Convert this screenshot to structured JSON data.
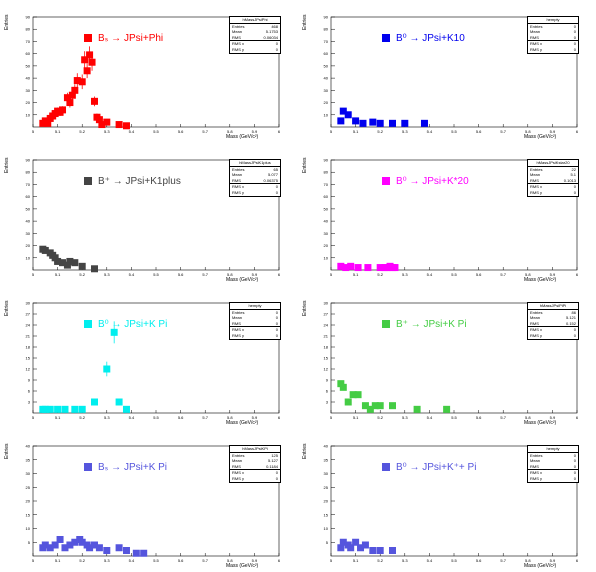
{
  "axis_common": {
    "ylabel": "Entries",
    "xlabel": "Mass (GeV/c²)"
  },
  "chart_data": [
    {
      "type": "scatter",
      "legend": "Bₛ → JPsi+Phi",
      "color": "#ff0000",
      "stats": {
        "title": "hMassJPsiPhi",
        "entries": "468",
        "mean": "5.1753",
        "rms": "0.06034",
        "row4": "RMS x",
        "row4v": "0",
        "row5": "RMS y",
        "row5v": "0"
      },
      "x": [
        4.99,
        5.0,
        5.01,
        5.02,
        5.03,
        5.04,
        5.05,
        5.06,
        5.07,
        5.09,
        5.1,
        5.11,
        5.12,
        5.13,
        5.15,
        5.16,
        5.17,
        5.18,
        5.19,
        5.2,
        5.21,
        5.22,
        5.23,
        5.25,
        5.3,
        5.33
      ],
      "y": [
        3,
        5,
        3,
        7,
        9,
        11,
        13,
        12,
        14,
        24,
        20,
        26,
        30,
        38,
        37,
        55,
        46,
        59,
        53,
        21,
        8,
        6,
        2,
        4,
        2,
        1
      ],
      "err": [
        0,
        2,
        0,
        3,
        3,
        3,
        3,
        3,
        3,
        4,
        4,
        5,
        5,
        6,
        6,
        7,
        6,
        7,
        7,
        4,
        3,
        2,
        1,
        2,
        1,
        1
      ],
      "ylim": [
        0,
        90
      ],
      "yticks": [
        "90",
        "80",
        "70",
        "60",
        "50",
        "40",
        "30",
        "20",
        "10"
      ],
      "xlim": [
        4.95,
        5.45
      ]
    },
    {
      "type": "scatter",
      "legend": "B⁰ → JPsi+K10",
      "color": "#0000ee",
      "stats": {
        "title": "hempty",
        "entries": "0",
        "mean": "0",
        "rms": "0",
        "row4": "RMS x",
        "row4v": "0",
        "row5": "RMS y",
        "row5v": "0"
      },
      "x": [
        4.99,
        5.0,
        5.02,
        5.05,
        5.08,
        5.12,
        5.15,
        5.2,
        5.25,
        5.33
      ],
      "y": [
        5,
        13,
        10,
        5,
        3,
        4,
        3,
        3,
        3,
        3
      ],
      "err": [
        0,
        0,
        0,
        0,
        0,
        0,
        0,
        0,
        0,
        0
      ],
      "ylim": [
        0,
        90
      ],
      "yticks": [
        "90",
        "80",
        "70",
        "60",
        "50",
        "40",
        "30",
        "20",
        "10"
      ],
      "xlim": [
        4.95,
        5.45
      ]
    },
    {
      "type": "scatter",
      "legend": "B⁺ → JPsi+K1plus",
      "color": "#444444",
      "stats": {
        "title": "hMassJPsiK1plus",
        "entries": "65",
        "mean": "5.077",
        "rms": "0.06375",
        "row4": "RMS x",
        "row4v": "0",
        "row5": "RMS y",
        "row5v": "0"
      },
      "x": [
        4.99,
        5.0,
        5.02,
        5.03,
        5.04,
        5.05,
        5.07,
        5.09,
        5.1,
        5.12,
        5.15,
        5.2
      ],
      "y": [
        17,
        16,
        14,
        12,
        10,
        7,
        6,
        4,
        7,
        6,
        3,
        1
      ],
      "err": [
        0,
        0,
        0,
        0,
        0,
        0,
        0,
        0,
        0,
        0,
        0,
        0
      ],
      "ylim": [
        0,
        90
      ],
      "yticks": [
        "90",
        "80",
        "70",
        "60",
        "50",
        "40",
        "30",
        "20",
        "10"
      ],
      "xlim": [
        4.95,
        5.45
      ]
    },
    {
      "type": "scatter",
      "legend": "B⁰ → JPsi+K*20",
      "color": "#ff00ff",
      "stats": {
        "title": "hMassJPsiKstar20",
        "entries": "22",
        "mean": "5.1",
        "rms": "0.1013",
        "row4": "RMS x",
        "row4v": "0",
        "row5": "RMS y",
        "row5v": "0"
      },
      "x": [
        4.99,
        5.01,
        5.03,
        5.06,
        5.1,
        5.15,
        5.17,
        5.18,
        5.19,
        5.2,
        5.21
      ],
      "y": [
        3,
        2,
        3,
        2,
        2,
        2,
        2,
        2,
        3,
        2,
        2
      ],
      "err": [
        0,
        0,
        0,
        0,
        0,
        0,
        0,
        0,
        0,
        0,
        0
      ],
      "ylim": [
        0,
        90
      ],
      "yticks": [
        "90",
        "80",
        "70",
        "60",
        "50",
        "40",
        "30",
        "20",
        "10"
      ],
      "xlim": [
        4.95,
        5.45
      ]
    },
    {
      "type": "scatter",
      "legend": "B⁰ → JPsi+K Pi",
      "color": "#00eeee",
      "stats": {
        "title": "hempty",
        "entries": "0",
        "mean": "0",
        "rms": "0",
        "row4": "RMS x",
        "row4v": "0",
        "row5": "RMS y",
        "row5v": "0"
      },
      "x": [
        4.99,
        5.0,
        5.02,
        5.05,
        5.08,
        5.12,
        5.15,
        5.2,
        5.25,
        5.28,
        5.3,
        5.33
      ],
      "y": [
        1,
        1,
        1,
        1,
        1,
        1,
        1,
        3,
        12,
        22,
        3,
        1
      ],
      "err": [
        0,
        0,
        0,
        0,
        0,
        0,
        0,
        0,
        2,
        3,
        0,
        0
      ],
      "ylim": [
        0,
        30
      ],
      "yticks": [
        "30",
        "27",
        "24",
        "21",
        "18",
        "15",
        "12",
        "9",
        "6",
        "3"
      ],
      "xlim": [
        4.95,
        5.45
      ]
    },
    {
      "type": "scatter",
      "legend": "B⁺ → JPsi+K Pi",
      "color": "#44cc44",
      "stats": {
        "title": "hMassJPsiPiPi",
        "entries": "86",
        "mean": "5.121",
        "rms": "0.152",
        "row4": "RMS x",
        "row4v": "0",
        "row5": "RMS y",
        "row5v": "0"
      },
      "x": [
        4.99,
        5.0,
        5.02,
        5.04,
        5.06,
        5.09,
        5.11,
        5.13,
        5.15,
        5.2,
        5.3,
        5.42
      ],
      "y": [
        8,
        7,
        3,
        5,
        5,
        2,
        1,
        2,
        2,
        2,
        1,
        1
      ],
      "err": [
        0,
        0,
        0,
        0,
        0,
        0,
        0,
        0,
        0,
        0,
        0,
        0
      ],
      "ylim": [
        0,
        30
      ],
      "yticks": [
        "30",
        "27",
        "24",
        "21",
        "18",
        "15",
        "12",
        "9",
        "6",
        "3"
      ],
      "xlim": [
        4.95,
        5.45
      ]
    },
    {
      "type": "scatter",
      "legend": "Bₛ → JPsi+K Pi",
      "color": "#5555dd",
      "stats": {
        "title": "hMassJPsiKPi",
        "entries": "125",
        "mean": "5.127",
        "rms": "0.1184",
        "row4": "RMS x",
        "row4v": "0",
        "row5": "RMS y",
        "row5v": "0"
      },
      "x": [
        4.99,
        5.0,
        5.02,
        5.04,
        5.06,
        5.08,
        5.1,
        5.12,
        5.14,
        5.15,
        5.17,
        5.18,
        5.2,
        5.22,
        5.25,
        5.3,
        5.33,
        5.37,
        5.4
      ],
      "y": [
        3,
        4,
        3,
        4,
        6,
        3,
        4,
        5,
        6,
        5,
        4,
        3,
        4,
        3,
        2,
        3,
        2,
        1,
        1
      ],
      "err": [
        0,
        0,
        0,
        0,
        0,
        0,
        0,
        0,
        0,
        0,
        0,
        0,
        0,
        0,
        0,
        0,
        0,
        0,
        0
      ],
      "ylim": [
        0,
        40
      ],
      "yticks": [
        "40",
        "35",
        "30",
        "25",
        "20",
        "15",
        "10",
        "5"
      ],
      "xlim": [
        4.95,
        5.45
      ]
    },
    {
      "type": "scatter",
      "legend": "B⁰ → JPsi+K⁺+ Pi",
      "color": "#5555dd",
      "stats": {
        "title": "hempty",
        "entries": "0",
        "mean": "0",
        "rms": "0",
        "row4": "RMS x",
        "row4v": "0",
        "row5": "RMS y",
        "row5v": "0"
      },
      "x": [
        4.99,
        5.0,
        5.02,
        5.03,
        5.05,
        5.07,
        5.09,
        5.12,
        5.15,
        5.2
      ],
      "y": [
        3,
        5,
        4,
        3,
        5,
        3,
        4,
        2,
        2,
        2
      ],
      "err": [
        0,
        0,
        0,
        0,
        0,
        0,
        0,
        0,
        0,
        0
      ],
      "ylim": [
        0,
        40
      ],
      "yticks": [
        "40",
        "35",
        "30",
        "25",
        "20",
        "15",
        "10",
        "5"
      ],
      "xlim": [
        4.95,
        5.45
      ]
    }
  ],
  "xticks": [
    "5",
    "5.1",
    "5.2",
    "5.3",
    "5.4",
    "5.5",
    "5.6",
    "5.7",
    "5.8",
    "5.9",
    "6"
  ]
}
